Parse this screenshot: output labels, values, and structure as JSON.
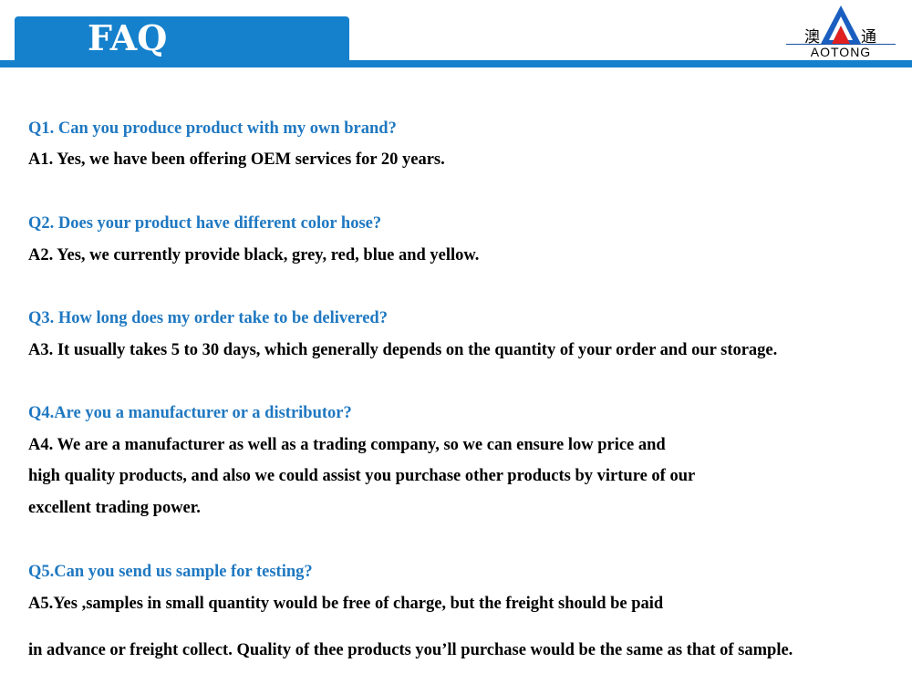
{
  "header": {
    "title": "FAQ"
  },
  "logo": {
    "text": "AOTONG",
    "cjk_left": "澳",
    "cjk_right": "通"
  },
  "colors": {
    "accent": "#1580cc",
    "question": "#1f78c1",
    "answer": "#000000",
    "logo_red": "#e02020"
  },
  "faq": [
    {
      "q": "Q1. Can you produce product with my own brand?",
      "a": [
        "A1. Yes, we have been offering OEM services for 20 years."
      ]
    },
    {
      "q": "Q2. Does your product have different color hose?",
      "a": [
        "A2. Yes, we currently provide black, grey, red, blue and yellow."
      ]
    },
    {
      "q": "Q3. How long does my order take to be delivered?",
      "a": [
        "A3. It usually takes 5 to 30 days, which generally depends on the quantity of your order and our storage."
      ]
    },
    {
      "q": "Q4.Are you a manufacturer or a distributor?",
      "a": [
        "A4. We are a manufacturer as well as a trading company, so we can ensure low price and",
        "high quality products, and also we could assist you purchase other products by virture of our",
        " excellent trading power."
      ]
    },
    {
      "q": "Q5.Can you send us sample for testing?",
      "a": [
        "A5.Yes ,samples in small quantity would be free of charge, but the freight should be paid",
        " in advance or freight collect. Quality of thee products you’ll purchase would be the same as that of sample."
      ]
    }
  ]
}
